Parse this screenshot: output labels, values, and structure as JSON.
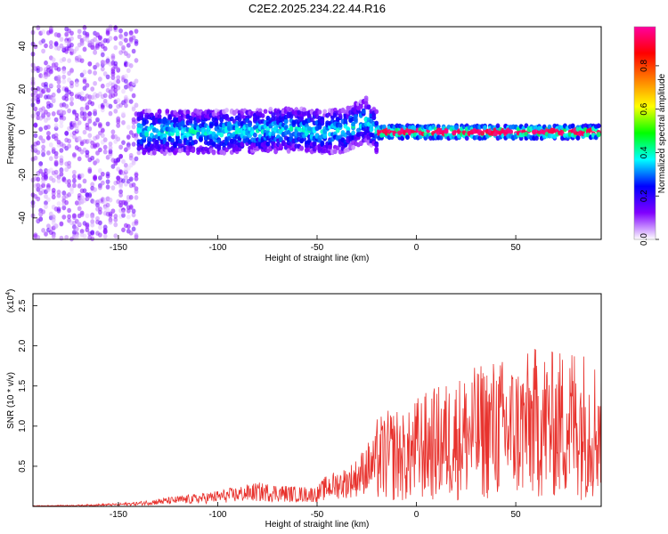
{
  "title": "C2E2.2025.234.22.44.R16",
  "chart_data": [
    {
      "type": "heatmap",
      "xlabel": "Height of straight line (km)",
      "ylabel": "Frequency (Hz)",
      "xlim": [
        -193,
        93
      ],
      "ylim": [
        -50,
        49
      ],
      "xticks": [
        -150,
        -100,
        -50,
        0,
        50
      ],
      "yticks": [
        -40,
        -20,
        0,
        20,
        40
      ],
      "colorbar": {
        "label": "Normalized spectral amplitude",
        "range": [
          0,
          0.98
        ],
        "ticks": [
          0.0,
          0.2,
          0.4,
          0.6,
          0.8
        ],
        "colors": [
          "#ffffff",
          "#8000ff",
          "#0000ff",
          "#00ffff",
          "#00ff00",
          "#ffff00",
          "#ff8000",
          "#ff0000",
          "#ff00a0"
        ]
      },
      "ridge": {
        "x": [
          -130,
          -100,
          -60,
          -45,
          -35,
          -25,
          -20,
          0,
          93
        ],
        "y": [
          0,
          0,
          1,
          0,
          1,
          6,
          0,
          0,
          0
        ]
      }
    },
    {
      "type": "line",
      "xlabel": "Height of straight line (km)",
      "ylabel": "SNR (10 * v/v)",
      "scale_label": "(x10",
      "scale_exp": "4",
      "scale_close": ")",
      "xlim": [
        -193,
        93
      ],
      "ylim": [
        0,
        2.65
      ],
      "xticks": [
        -150,
        -100,
        -50,
        0,
        50
      ],
      "yticks": [
        0.5,
        1.0,
        1.5,
        2.0,
        2.5
      ],
      "series": [
        {
          "color": "#e8322d",
          "x": [
            -193,
            -170,
            -150,
            -140,
            -130,
            -120,
            -110,
            -100,
            -90,
            -80,
            -70,
            -60,
            -50,
            -45,
            -40,
            -35,
            -30,
            -25,
            -20,
            -15,
            -10,
            -5,
            0,
            10,
            20,
            30,
            40,
            50,
            60,
            70,
            80,
            90,
            93
          ],
          "y": [
            0.01,
            0.02,
            0.04,
            0.06,
            0.1,
            0.13,
            0.16,
            0.2,
            0.25,
            0.3,
            0.28,
            0.25,
            0.25,
            0.4,
            0.45,
            0.5,
            0.6,
            0.8,
            0.9,
            0.95,
            1.0,
            0.9,
            1.1,
            1.2,
            1.3,
            1.4,
            1.5,
            1.45,
            1.6,
            1.55,
            1.65,
            1.5,
            1.6
          ]
        }
      ]
    }
  ]
}
